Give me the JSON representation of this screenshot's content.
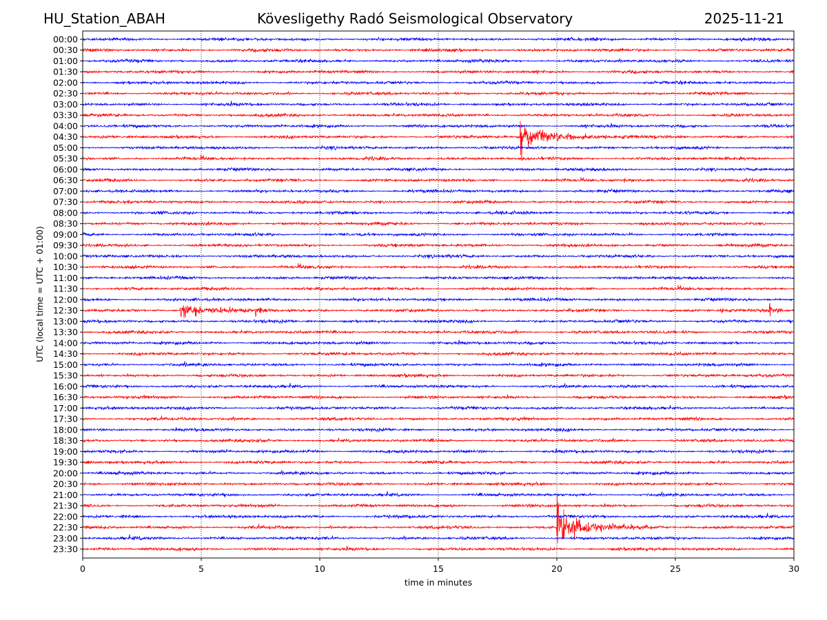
{
  "header": {
    "station": "HU_Station_ABAH",
    "observatory": "Kövesligethy Radó Seismological Observatory",
    "date": "2025-11-21"
  },
  "chart_data": {
    "type": "line",
    "subtype": "helicorder",
    "title": "Kövesligethy Radó Seismological Observatory",
    "xlabel": "time in minutes",
    "ylabel": "UTC (local time = UTC + 01:00)",
    "xlim": [
      0,
      30
    ],
    "xticks": [
      "0",
      "5",
      "10",
      "15",
      "20",
      "25",
      "30"
    ],
    "grid": "vertical dotted at every 5 minutes",
    "row_labels": [
      "00:00",
      "00:30",
      "01:00",
      "01:30",
      "02:00",
      "02:30",
      "03:00",
      "03:30",
      "04:00",
      "04:30",
      "05:00",
      "05:30",
      "06:00",
      "06:30",
      "07:00",
      "07:30",
      "08:00",
      "08:30",
      "09:00",
      "09:30",
      "10:00",
      "10:30",
      "11:00",
      "11:30",
      "12:00",
      "12:30",
      "13:00",
      "13:30",
      "14:00",
      "14:30",
      "15:00",
      "15:30",
      "16:00",
      "16:30",
      "17:00",
      "17:30",
      "18:00",
      "18:30",
      "19:00",
      "19:30",
      "20:00",
      "20:30",
      "21:00",
      "21:30",
      "22:00",
      "22:30",
      "23:00",
      "23:30"
    ],
    "trace_colors": [
      "#0000ff",
      "#ff0000"
    ],
    "noise_amplitude": 1.2,
    "events": [
      {
        "row": "04:30",
        "start_min": 18.45,
        "end_min": 26.5,
        "amplitude": 12,
        "spike": 34
      },
      {
        "row": "12:30",
        "start_min": 4.1,
        "end_min": 10.5,
        "amplitude": 8,
        "spike": 12
      },
      {
        "row": "12:30",
        "start_min": 7.25,
        "end_min": 9.5,
        "amplitude": 5,
        "spike": 8
      },
      {
        "row": "12:30",
        "start_min": 26.9,
        "end_min": 28.5,
        "amplitude": 3,
        "spike": 5
      },
      {
        "row": "12:30",
        "start_min": 28.95,
        "end_min": 30,
        "amplitude": 6,
        "spike": 10
      },
      {
        "row": "22:30",
        "start_min": 20.0,
        "end_min": 26.5,
        "amplitude": 18,
        "spike": 45
      }
    ]
  }
}
